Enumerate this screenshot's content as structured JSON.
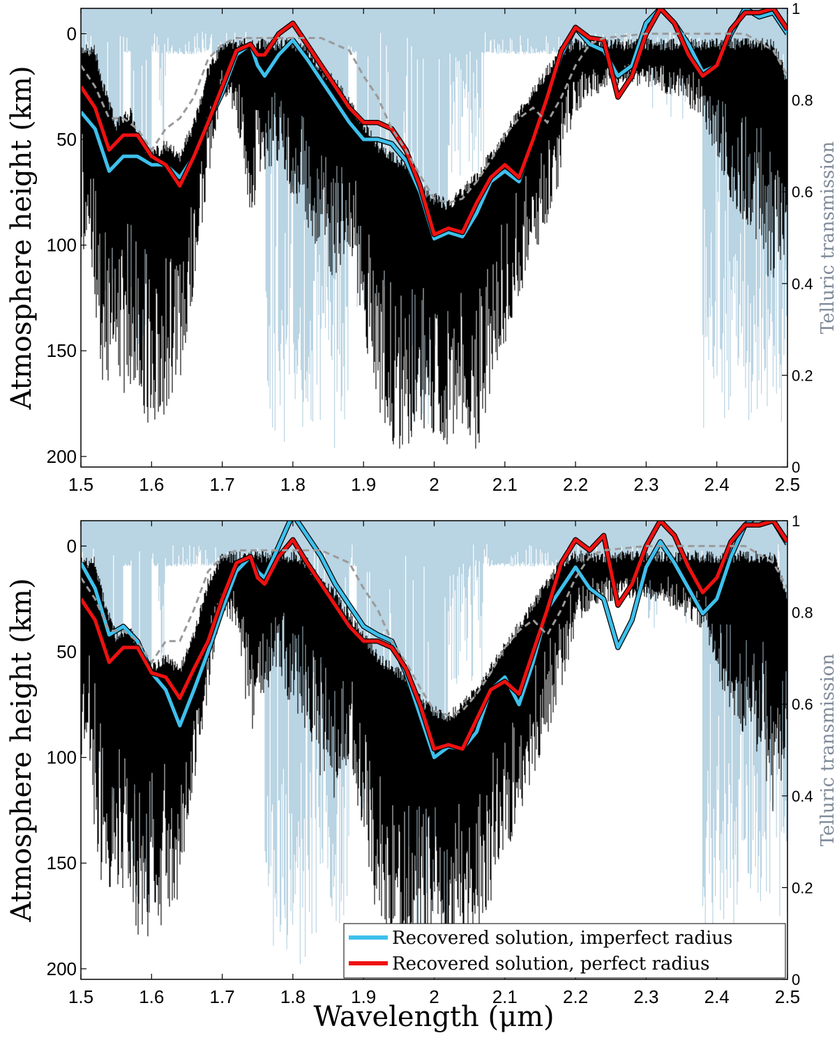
{
  "colors": {
    "telluric": "#b9d4e3",
    "spectrum": "#000000",
    "imperfect": "#3ec0ec",
    "perfect": "#ee1111",
    "dashed": "#9a9a9a",
    "right_axis_title": "#7f8a9a"
  },
  "chart_data": [
    {
      "type": "line",
      "title": "",
      "xlabel": "",
      "ylabel": "Atmosphere height (km)",
      "ylabel_right": "Telluric transmission",
      "xlim": [
        1.5,
        2.5
      ],
      "ylim": [
        205,
        -12
      ],
      "y_inverted": true,
      "ylim_right": [
        0,
        1
      ],
      "x_ticks": [
        "1.5",
        "1.6",
        "1.7",
        "1.8",
        "1.9",
        "2",
        "2.1",
        "2.2",
        "2.3",
        "2.4",
        "2.5"
      ],
      "y_ticks": [
        "0",
        "50",
        "100",
        "150",
        "200"
      ],
      "y_ticks_right": [
        "0",
        "0.2",
        "0.4",
        "0.6",
        "0.8",
        "1"
      ],
      "grid": false,
      "legend": null,
      "series": [
        {
          "key": "imperfect",
          "x": [
            1.5,
            1.52,
            1.54,
            1.56,
            1.58,
            1.6,
            1.62,
            1.64,
            1.66,
            1.68,
            1.7,
            1.72,
            1.74,
            1.75,
            1.76,
            1.78,
            1.8,
            1.82,
            1.84,
            1.86,
            1.88,
            1.9,
            1.92,
            1.94,
            1.96,
            1.98,
            2.0,
            2.02,
            2.04,
            2.06,
            2.08,
            2.1,
            2.12,
            2.14,
            2.16,
            2.18,
            2.2,
            2.22,
            2.24,
            2.26,
            2.28,
            2.3,
            2.32,
            2.34,
            2.36,
            2.38,
            2.4,
            2.42,
            2.44,
            2.46,
            2.48,
            2.5
          ],
          "y": [
            37,
            45,
            65,
            58,
            58,
            62,
            62,
            68,
            58,
            42,
            28,
            10,
            5,
            15,
            20,
            10,
            3,
            12,
            22,
            32,
            42,
            50,
            50,
            52,
            60,
            75,
            97,
            94,
            96,
            85,
            70,
            65,
            70,
            50,
            30,
            10,
            -3,
            5,
            8,
            20,
            15,
            -5,
            -12,
            -5,
            5,
            18,
            15,
            0,
            -12,
            -8,
            -10,
            0
          ]
        },
        {
          "key": "perfect",
          "x": [
            1.5,
            1.52,
            1.54,
            1.56,
            1.58,
            1.6,
            1.62,
            1.64,
            1.66,
            1.68,
            1.7,
            1.72,
            1.74,
            1.75,
            1.76,
            1.78,
            1.8,
            1.82,
            1.84,
            1.86,
            1.88,
            1.9,
            1.92,
            1.94,
            1.96,
            1.98,
            2.0,
            2.02,
            2.04,
            2.06,
            2.08,
            2.1,
            2.12,
            2.14,
            2.16,
            2.18,
            2.2,
            2.22,
            2.24,
            2.26,
            2.28,
            2.3,
            2.32,
            2.34,
            2.36,
            2.38,
            2.4,
            2.42,
            2.44,
            2.46,
            2.48,
            2.5
          ],
          "y": [
            25,
            35,
            55,
            48,
            48,
            58,
            62,
            72,
            58,
            42,
            25,
            8,
            5,
            10,
            10,
            0,
            -5,
            5,
            15,
            25,
            35,
            42,
            42,
            45,
            55,
            72,
            95,
            92,
            94,
            80,
            68,
            62,
            68,
            50,
            30,
            8,
            -3,
            2,
            3,
            30,
            20,
            0,
            -12,
            -5,
            10,
            20,
            15,
            -2,
            -10,
            -10,
            -12,
            -2
          ]
        },
        {
          "key": "dashed",
          "x": [
            1.5,
            1.52,
            1.54,
            1.56,
            1.58,
            1.6,
            1.62,
            1.64,
            1.66,
            1.68,
            1.7,
            1.72,
            1.74,
            1.76,
            1.78,
            1.8,
            1.84,
            1.88,
            1.9,
            1.92,
            1.94,
            1.96,
            1.98,
            2.0,
            2.02,
            2.04,
            2.06,
            2.08,
            2.1,
            2.12,
            2.14,
            2.16,
            2.18,
            2.2,
            2.22,
            2.24,
            2.3,
            2.4,
            2.44,
            2.48,
            2.5
          ],
          "y": [
            15,
            25,
            40,
            40,
            45,
            55,
            45,
            40,
            30,
            12,
            5,
            2,
            2,
            2,
            2,
            2,
            2,
            8,
            20,
            30,
            45,
            55,
            67,
            78,
            80,
            78,
            70,
            60,
            48,
            40,
            35,
            42,
            30,
            15,
            5,
            2,
            0,
            0,
            0,
            8,
            20
          ]
        }
      ]
    },
    {
      "type": "line",
      "title": "",
      "xlabel": "Wavelength (μm)",
      "ylabel": "Atmosphere height (km)",
      "ylabel_right": "Telluric transmission",
      "xlim": [
        1.5,
        2.5
      ],
      "ylim": [
        205,
        -12
      ],
      "y_inverted": true,
      "ylim_right": [
        0,
        1
      ],
      "x_ticks": [
        "1.5",
        "1.6",
        "1.7",
        "1.8",
        "1.9",
        "2",
        "2.1",
        "2.2",
        "2.3",
        "2.4",
        "2.5"
      ],
      "y_ticks": [
        "0",
        "50",
        "100",
        "150",
        "200"
      ],
      "y_ticks_right": [
        "0",
        "0.2",
        "0.4",
        "0.6",
        "0.8",
        "1"
      ],
      "grid": false,
      "legend": {
        "position": "bottom-right",
        "entries": [
          {
            "key": "imperfect",
            "label": "Recovered solution, imperfect radius"
          },
          {
            "key": "perfect",
            "label": "Recovered solution, perfect radius"
          }
        ]
      },
      "series": [
        {
          "key": "imperfect",
          "x": [
            1.5,
            1.52,
            1.54,
            1.56,
            1.58,
            1.6,
            1.62,
            1.64,
            1.66,
            1.68,
            1.7,
            1.72,
            1.74,
            1.75,
            1.76,
            1.78,
            1.8,
            1.82,
            1.84,
            1.86,
            1.88,
            1.9,
            1.92,
            1.94,
            1.96,
            1.98,
            2.0,
            2.02,
            2.04,
            2.06,
            2.08,
            2.1,
            2.12,
            2.14,
            2.16,
            2.18,
            2.2,
            2.22,
            2.24,
            2.26,
            2.28,
            2.3,
            2.32,
            2.34,
            2.36,
            2.38,
            2.4,
            2.42,
            2.44,
            2.46,
            2.48,
            2.5
          ],
          "y": [
            8,
            20,
            42,
            38,
            45,
            60,
            68,
            85,
            68,
            50,
            30,
            12,
            5,
            12,
            15,
            0,
            -15,
            -5,
            5,
            18,
            28,
            38,
            42,
            45,
            60,
            80,
            100,
            95,
            96,
            88,
            68,
            62,
            75,
            55,
            30,
            20,
            10,
            20,
            25,
            48,
            35,
            10,
            -2,
            8,
            20,
            32,
            25,
            5,
            -10,
            -15,
            -12,
            -1
          ]
        },
        {
          "key": "perfect",
          "x": [
            1.5,
            1.52,
            1.54,
            1.56,
            1.58,
            1.6,
            1.62,
            1.64,
            1.66,
            1.68,
            1.7,
            1.72,
            1.74,
            1.75,
            1.76,
            1.78,
            1.8,
            1.82,
            1.84,
            1.86,
            1.88,
            1.9,
            1.92,
            1.94,
            1.96,
            1.98,
            2.0,
            2.02,
            2.04,
            2.06,
            2.08,
            2.1,
            2.12,
            2.14,
            2.16,
            2.18,
            2.2,
            2.22,
            2.24,
            2.26,
            2.28,
            2.3,
            2.32,
            2.34,
            2.36,
            2.38,
            2.4,
            2.42,
            2.44,
            2.46,
            2.48,
            2.5
          ],
          "y": [
            25,
            35,
            55,
            48,
            48,
            60,
            62,
            72,
            58,
            45,
            25,
            8,
            5,
            15,
            18,
            5,
            -3,
            8,
            18,
            28,
            38,
            45,
            45,
            48,
            58,
            75,
            96,
            94,
            96,
            82,
            68,
            64,
            70,
            50,
            30,
            8,
            -3,
            2,
            -5,
            28,
            18,
            0,
            -12,
            -5,
            10,
            22,
            15,
            -2,
            -10,
            -10,
            -12,
            -2
          ]
        },
        {
          "key": "dashed",
          "x": [
            1.5,
            1.52,
            1.54,
            1.56,
            1.58,
            1.6,
            1.62,
            1.64,
            1.66,
            1.68,
            1.7,
            1.72,
            1.74,
            1.76,
            1.78,
            1.8,
            1.84,
            1.88,
            1.9,
            1.92,
            1.94,
            1.96,
            1.98,
            2.0,
            2.02,
            2.04,
            2.06,
            2.08,
            2.1,
            2.12,
            2.14,
            2.16,
            2.18,
            2.2,
            2.22,
            2.24,
            2.3,
            2.4,
            2.44,
            2.48,
            2.5
          ],
          "y": [
            15,
            25,
            40,
            40,
            45,
            55,
            45,
            45,
            30,
            12,
            5,
            2,
            2,
            2,
            2,
            2,
            2,
            8,
            20,
            30,
            45,
            55,
            67,
            78,
            80,
            78,
            70,
            60,
            48,
            40,
            35,
            42,
            30,
            15,
            5,
            2,
            0,
            0,
            0,
            8,
            20
          ]
        }
      ]
    }
  ]
}
